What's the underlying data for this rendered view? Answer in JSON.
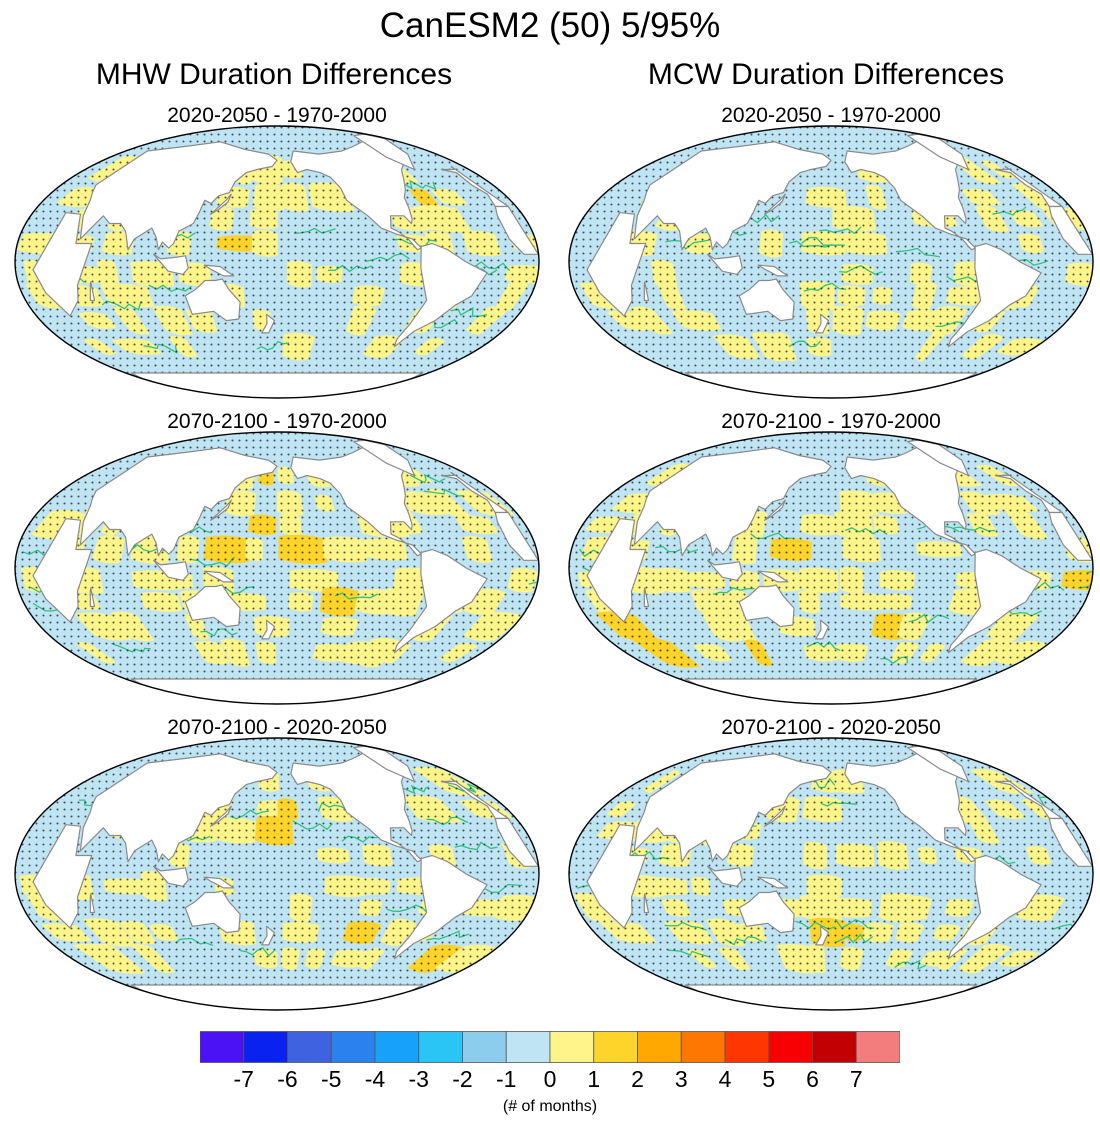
{
  "title": "CanESM2 (50) 5/95%",
  "columns": [
    {
      "title": "MHW Duration Differences"
    },
    {
      "title": "MCW Duration Differences"
    }
  ],
  "panels": [
    {
      "title": "2020-2050 - 1970-2000"
    },
    {
      "title": "2070-2100 - 1970-2000"
    },
    {
      "title": "2070-2100 - 2020-2050"
    },
    {
      "title": "2020-2050 - 1970-2000"
    },
    {
      "title": "2070-2100 - 1970-2000"
    },
    {
      "title": "2070-2100 - 2020-2050"
    }
  ],
  "colorbar": {
    "units": "(# of months)",
    "tick_labels": [
      "-7",
      "-6",
      "-5",
      "-4",
      "-3",
      "-2",
      "-1",
      "0",
      "1",
      "2",
      "3",
      "4",
      "5",
      "6",
      "7"
    ],
    "colors": [
      "#4a12f5",
      "#0a22f0",
      "#3f63e0",
      "#2b82ee",
      "#16a2f8",
      "#2ac4f5",
      "#8ccdee",
      "#bfe5f5",
      "#fdf58a",
      "#fed42a",
      "#fea801",
      "#fd7703",
      "#fe3702",
      "#f80001",
      "#c30001",
      "#f17d7d"
    ]
  },
  "map_colors": {
    "land": "#ffffff",
    "coast": "#8a8a8a",
    "ocean_neg": "#bfe5f5",
    "ocean_neg_strong": "#8ccdee",
    "ocean_pos": "#fdf58a",
    "ocean_pos_strong": "#fed42a",
    "contour": "#2ec27e",
    "stipple": "#1a1a1a"
  }
}
